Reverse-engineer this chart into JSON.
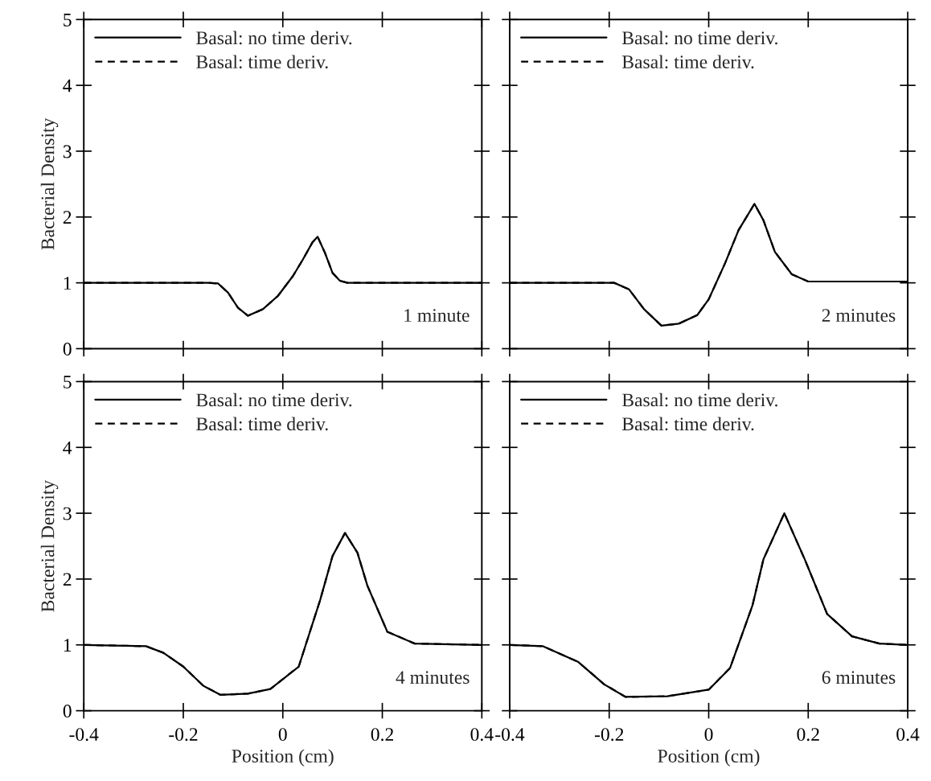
{
  "chart_data": [
    {
      "type": "line",
      "ylabel": "Bacterial Density",
      "xlim": [
        -0.4,
        0.4
      ],
      "ylim": [
        0,
        5
      ],
      "xticks": [
        -0.4,
        -0.2,
        0,
        0.2,
        0.4
      ],
      "yticks": [
        0,
        1,
        2,
        3,
        4,
        5
      ],
      "tick_labels": "y",
      "legend": "top left",
      "grid": false,
      "annotations": [
        "1 minute"
      ],
      "x": [
        -0.4,
        -0.15,
        -0.13,
        -0.11,
        -0.09,
        -0.07,
        -0.04,
        -0.01,
        0.02,
        0.04,
        0.06,
        0.07,
        0.085,
        0.1,
        0.115,
        0.13,
        0.4
      ],
      "series": [
        {
          "name": "Basal: no time deriv.",
          "color": "#000000",
          "line_style": "solid",
          "values": [
            1,
            1,
            0.99,
            0.85,
            0.62,
            0.5,
            0.6,
            0.8,
            1.1,
            1.35,
            1.62,
            1.7,
            1.45,
            1.15,
            1.03,
            1.0,
            1.0
          ]
        },
        {
          "name": "Basal: time deriv.",
          "color": "#000000",
          "line_style": "dashed",
          "values": [
            1,
            1,
            0.99,
            0.85,
            0.62,
            0.5,
            0.6,
            0.8,
            1.1,
            1.35,
            1.62,
            1.7,
            1.45,
            1.15,
            1.03,
            1.0,
            1.0
          ]
        }
      ]
    },
    {
      "type": "line",
      "xlim": [
        -0.4,
        0.4
      ],
      "ylim": [
        0,
        5
      ],
      "xticks": [
        -0.4,
        -0.2,
        0,
        0.2,
        0.4
      ],
      "yticks": [
        0,
        1,
        2,
        3,
        4,
        5
      ],
      "tick_labels": false,
      "legend": "top left",
      "grid": false,
      "annotations": [
        "2 minutes"
      ],
      "x": [
        -0.4,
        -0.19,
        -0.16,
        -0.13,
        -0.095,
        -0.06,
        -0.023,
        0.0,
        0.033,
        0.06,
        0.092,
        0.11,
        0.133,
        0.167,
        0.2,
        0.4
      ],
      "series": [
        {
          "name": "Basal: no time deriv.",
          "color": "#000000",
          "line_style": "solid",
          "values": [
            1,
            1,
            0.9,
            0.6,
            0.35,
            0.38,
            0.51,
            0.75,
            1.3,
            1.8,
            2.2,
            1.95,
            1.47,
            1.13,
            1.02,
            1.02
          ]
        },
        {
          "name": "Basal: time deriv.",
          "color": "#000000",
          "line_style": "dashed",
          "values": [
            1,
            1,
            0.9,
            0.6,
            0.35,
            0.38,
            0.51,
            0.75,
            1.3,
            1.8,
            2.2,
            1.95,
            1.47,
            1.13,
            1.02,
            1.02
          ]
        }
      ]
    },
    {
      "type": "line",
      "ylabel": "Bacterial Density",
      "xlabel": "Position (cm)",
      "xlim": [
        -0.4,
        0.4
      ],
      "ylim": [
        0,
        5
      ],
      "xticks": [
        -0.4,
        -0.2,
        0,
        0.2,
        0.4
      ],
      "yticks": [
        0,
        1,
        2,
        3,
        4,
        5
      ],
      "legend": "top left",
      "grid": false,
      "annotations": [
        "4 minutes"
      ],
      "x": [
        -0.4,
        -0.275,
        -0.24,
        -0.2,
        -0.16,
        -0.125,
        -0.07,
        -0.025,
        0.032,
        0.075,
        0.1,
        0.125,
        0.15,
        0.17,
        0.21,
        0.265,
        0.4
      ],
      "series": [
        {
          "name": "Basal: no time deriv.",
          "color": "#000000",
          "line_style": "solid",
          "values": [
            1,
            0.98,
            0.88,
            0.67,
            0.38,
            0.24,
            0.26,
            0.33,
            0.67,
            1.68,
            2.35,
            2.7,
            2.4,
            1.9,
            1.2,
            1.02,
            1.0
          ]
        },
        {
          "name": "Basal: time deriv.",
          "color": "#000000",
          "line_style": "dashed",
          "values": [
            1,
            0.98,
            0.88,
            0.67,
            0.38,
            0.24,
            0.26,
            0.33,
            0.67,
            1.68,
            2.35,
            2.7,
            2.4,
            1.9,
            1.2,
            1.02,
            1.0
          ]
        }
      ]
    },
    {
      "type": "line",
      "xlabel": "Position (cm)",
      "xlim": [
        -0.4,
        0.4
      ],
      "ylim": [
        0,
        5
      ],
      "xticks": [
        -0.4,
        -0.2,
        0,
        0.2,
        0.4
      ],
      "yticks": [
        0,
        1,
        2,
        3,
        4,
        5
      ],
      "tick_labels": "x",
      "legend": "top left",
      "grid": false,
      "annotations": [
        "6 minutes"
      ],
      "x": [
        -0.4,
        -0.333,
        -0.262,
        -0.21,
        -0.167,
        -0.083,
        0.0,
        0.043,
        0.088,
        0.11,
        0.152,
        0.193,
        0.238,
        0.288,
        0.343,
        0.4
      ],
      "series": [
        {
          "name": "Basal: no time deriv.",
          "color": "#000000",
          "line_style": "solid",
          "values": [
            1,
            0.98,
            0.74,
            0.4,
            0.21,
            0.22,
            0.32,
            0.65,
            1.6,
            2.3,
            3.0,
            2.3,
            1.47,
            1.13,
            1.02,
            1.0
          ]
        },
        {
          "name": "Basal: time deriv.",
          "color": "#000000",
          "line_style": "dashed",
          "values": [
            1,
            0.98,
            0.74,
            0.4,
            0.21,
            0.22,
            0.32,
            0.65,
            1.6,
            2.3,
            3.0,
            2.3,
            1.47,
            1.13,
            1.02,
            1.0
          ]
        }
      ]
    }
  ]
}
